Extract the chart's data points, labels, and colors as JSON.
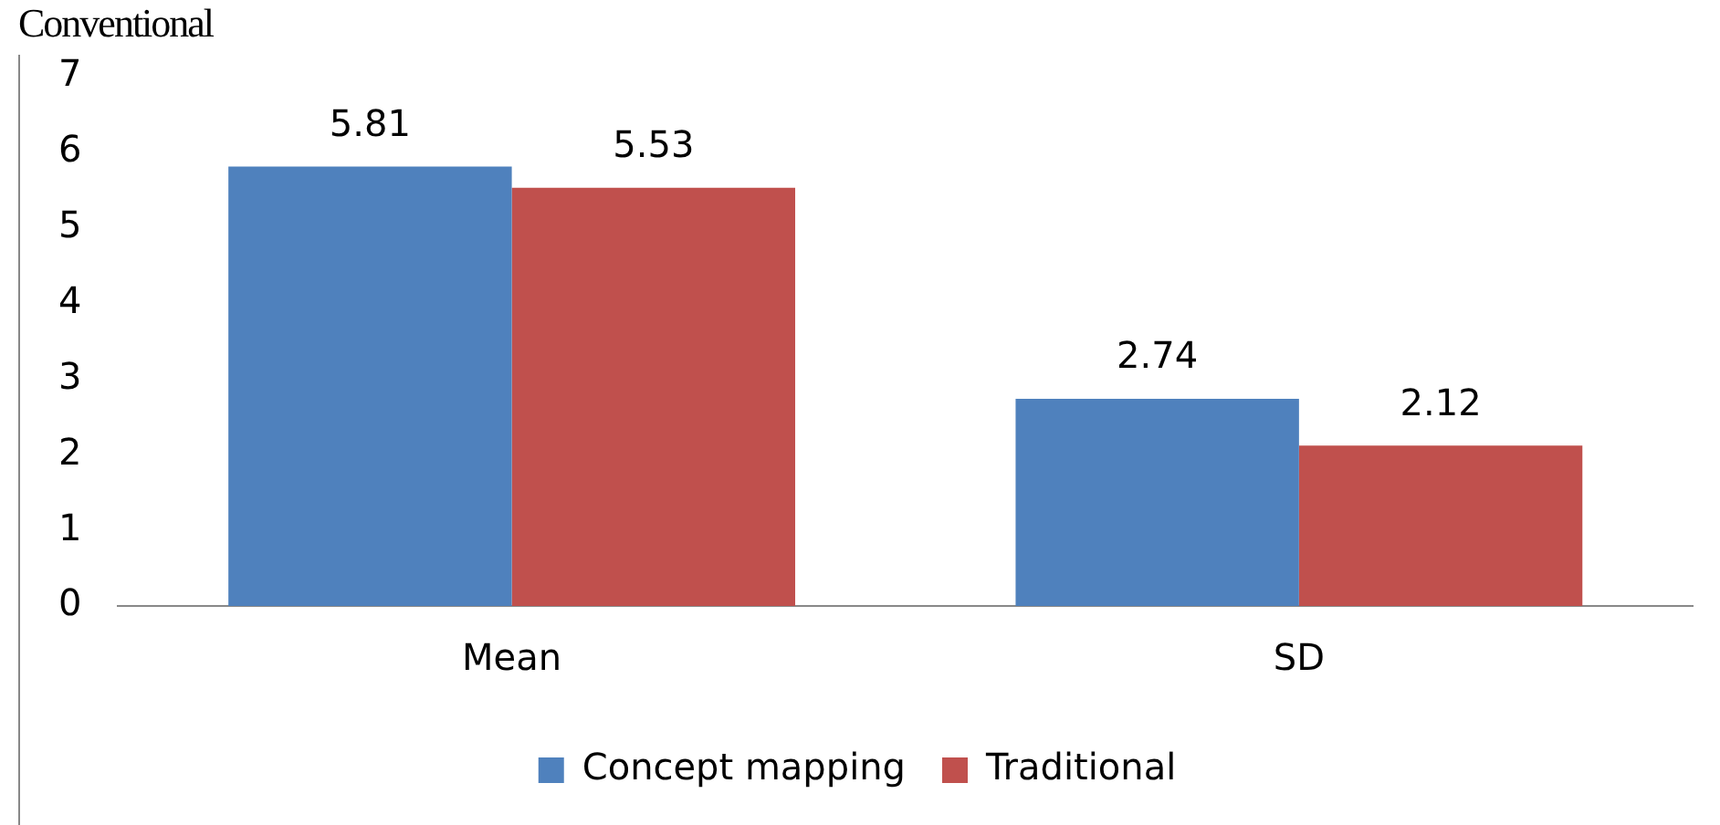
{
  "chart_data": {
    "type": "bar",
    "title": "Conventional",
    "categories": [
      "Mean",
      "SD"
    ],
    "series": [
      {
        "name": "Concept mapping",
        "color": "#4f81bd",
        "values": [
          5.81,
          2.74
        ]
      },
      {
        "name": "Traditional",
        "color": "#c0504d",
        "values": [
          5.53,
          2.12
        ]
      }
    ],
    "ylim": [
      0,
      7
    ],
    "yticks": [
      0,
      1,
      2,
      3,
      4,
      5,
      6,
      7
    ],
    "grid": false,
    "legend": "bottom",
    "data_labels": true
  }
}
